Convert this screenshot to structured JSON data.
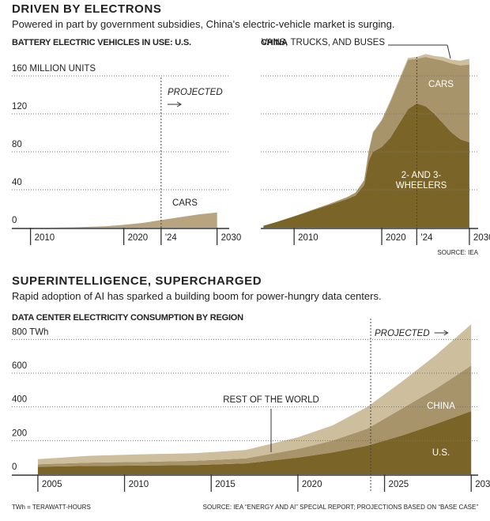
{
  "chart_data": [
    {
      "type": "area",
      "heading": "DRIVEN BY ELECTRONS",
      "subtitle": "Powered in part by government subsidies, China's electric-vehicle market is surging.",
      "title": "BATTERY ELECTRIC VEHICLES IN USE: U.S.",
      "x": [
        2012,
        2015,
        2018,
        2020,
        2022,
        2024,
        2026,
        2028,
        2030
      ],
      "series": [
        {
          "name": "CARS",
          "color": "#b8a57f",
          "values": [
            0,
            0.5,
            1.5,
            3,
            5,
            8,
            11,
            14,
            16
          ]
        }
      ],
      "xlim": [
        2008,
        2031.3
      ],
      "ylim": [
        0,
        180
      ],
      "xticks": [
        2010,
        2020,
        {
          "value": 2024,
          "label": "'24"
        },
        2030
      ],
      "yticks": [
        0,
        40,
        80,
        120,
        {
          "value": 160,
          "label": "160 MILLION UNITS"
        }
      ],
      "grid": true,
      "y_labels": true,
      "projected": {
        "x": 2024,
        "label": "PROJECTED"
      }
    },
    {
      "type": "area",
      "title": "CHINA",
      "source": "SOURCE: IEA",
      "x": [
        2006.5,
        2008,
        2010,
        2012,
        2014,
        2016,
        2017,
        2018,
        2018.5,
        2019,
        2020,
        2021,
        2022,
        2023,
        2024,
        2025,
        2026,
        2027,
        2028,
        2029,
        2030
      ],
      "series": [
        {
          "name": "2- AND 3-WHEELERS",
          "color": "#7a6428",
          "values": [
            2,
            6,
            12,
            18,
            24,
            30,
            34,
            45,
            70,
            80,
            85,
            95,
            110,
            125,
            131,
            128,
            120,
            110,
            100,
            93,
            90
          ]
        },
        {
          "name": "CARS",
          "color": "#a8946a",
          "values": [
            0,
            0,
            0,
            0.5,
            1,
            2,
            3,
            5,
            10,
            20,
            28,
            38,
            45,
            52,
            47,
            52,
            58,
            66,
            73,
            78,
            82
          ]
        },
        {
          "name": "VANS, TRUCKS, AND BUSES",
          "color": "#cdbf9e",
          "values": [
            0,
            0,
            0,
            0,
            0,
            0,
            0,
            0,
            0.5,
            1,
            1,
            1.5,
            2,
            2,
            2,
            3,
            3,
            4,
            4,
            5,
            6
          ]
        }
      ],
      "xlim": [
        2006.2,
        2031
      ],
      "ylim": [
        0,
        180
      ],
      "xticks": [
        2010,
        2020,
        {
          "value": 2024,
          "label": "'24"
        },
        2030
      ],
      "yticks": [
        0,
        40,
        80,
        120,
        160
      ],
      "grid": true,
      "y_labels": false,
      "projected": {
        "x": 2024
      }
    },
    {
      "type": "area",
      "heading": "SUPERINTELLIGENCE, SUPERCHARGED",
      "subtitle": "Rapid adoption of AI has sparked a building boom for power-hungry data centers.",
      "title": "DATA CENTER ELECTRICITY CONSUMPTION BY REGION",
      "note": "TWh = TERAWATT-HOURS",
      "source": "SOURCE: IEA “ENERGY AND AI” SPECIAL REPORT; PROJECTIONS BASED ON “BASE CASE”",
      "x": [
        2005,
        2008,
        2011,
        2014,
        2017,
        2020,
        2022,
        2024,
        2026,
        2028,
        2030
      ],
      "series": [
        {
          "name": "U.S.",
          "color": "#7a6428",
          "values": [
            45,
            50,
            52,
            55,
            65,
            100,
            130,
            170,
            230,
            300,
            375
          ]
        },
        {
          "name": "CHINA",
          "color": "#a8946a",
          "values": [
            15,
            20,
            22,
            25,
            30,
            50,
            70,
            100,
            160,
            210,
            270
          ]
        },
        {
          "name": "REST OF THE WORLD",
          "color": "#cdbf9e",
          "values": [
            30,
            40,
            45,
            45,
            50,
            70,
            90,
            130,
            160,
            200,
            245
          ]
        }
      ],
      "xlim": [
        2003.5,
        2030.4
      ],
      "ylim": [
        0,
        900
      ],
      "xticks": [
        2005,
        2010,
        2015,
        2020,
        2025,
        2030
      ],
      "yticks": [
        0,
        200,
        400,
        600,
        {
          "value": 800,
          "label": "800 TWh"
        }
      ],
      "grid": true,
      "y_labels": true,
      "projected": {
        "x": 2024.2,
        "label": "PROJECTED"
      }
    }
  ]
}
